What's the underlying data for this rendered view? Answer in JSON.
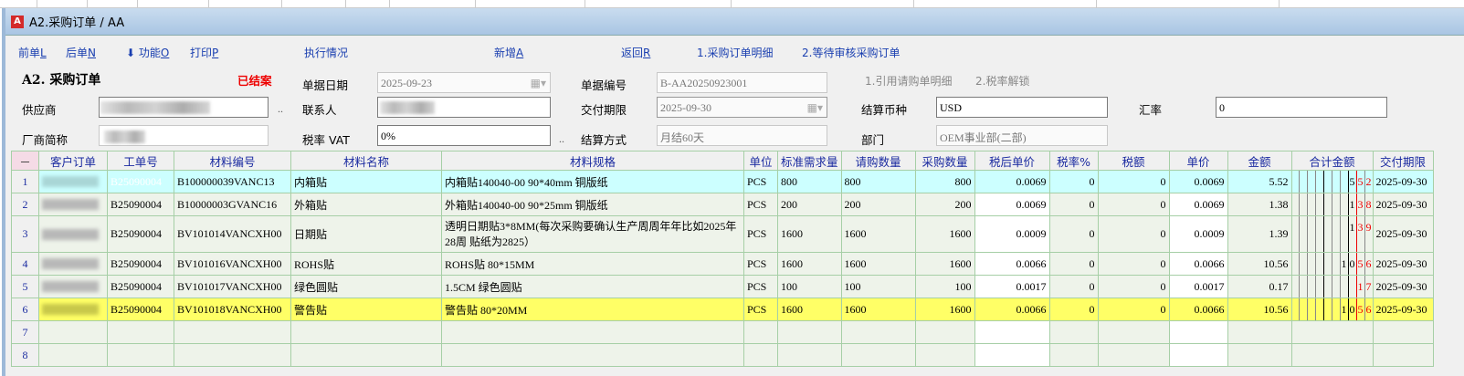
{
  "window": {
    "title": "A2.采购订单 / AA",
    "logo": "A"
  },
  "toolbar": [
    {
      "label": "前单",
      "key": "L"
    },
    {
      "label": "后单",
      "key": "N"
    },
    {
      "label": "功能",
      "key": "O",
      "icon": "arrow-down-icon"
    },
    {
      "label": "打印",
      "key": "P"
    },
    {
      "label": "执行情况",
      "key": ""
    },
    {
      "label": "新增",
      "key": "A"
    },
    {
      "label": "返回",
      "key": "R"
    },
    {
      "label": "1.采购订单明细",
      "key": ""
    },
    {
      "label": "2.等待审核采购订单",
      "key": ""
    }
  ],
  "form": {
    "heading": "A2. 采购订单",
    "status": "已结案",
    "date_label": "单据日期",
    "date": "2025-09-23",
    "docno_label": "单据编号",
    "docno": "B-AA20250923001",
    "ref_link": "1.引用请购单明细",
    "unlock_link": "2.税率解锁",
    "supplier_label": "供应商",
    "contact_label": "联系人",
    "delivery_label": "交付期限",
    "delivery": "2025-09-30",
    "currency_label": "结算币种",
    "currency": "USD",
    "rate_label": "汇率",
    "rate": "0",
    "short_label": "厂商简称",
    "vat_label": "税率 VAT",
    "vat": "0%",
    "payment_label": "结算方式",
    "payment": "月结60天",
    "dept_label": "部门",
    "dept": "OEM事业部(二部)",
    "ellipsis": ".."
  },
  "table": {
    "corner": "－",
    "columns": [
      "客户订单",
      "工单号",
      "材料编号",
      "材料名称",
      "材料规格",
      "单位",
      "标准需求量",
      "请购数量",
      "采购数量",
      "税后单价",
      "税率%",
      "税额",
      "单价",
      "金额",
      "合计金额",
      "交付期限"
    ],
    "rows": [
      {
        "n": "1",
        "wo": "B25090004",
        "code": "B100000039VANC13",
        "name": "内箱贴",
        "spec": "内箱贴140040-00 90*40mm 铜版纸",
        "unit": "PCS",
        "std": "800",
        "req": "800",
        "qty": "800",
        "tprice": "0.0069",
        "tax": "0",
        "taxamt": "0",
        "price": "0.0069",
        "amt": "5.52",
        "total": [
          "5",
          "5",
          "2"
        ],
        "due": "2025-09-30"
      },
      {
        "n": "2",
        "wo": "B25090004",
        "code": "B10000003GVANC16",
        "name": "外箱贴",
        "spec": "外箱贴140040-00 90*25mm 铜版纸",
        "unit": "PCS",
        "std": "200",
        "req": "200",
        "qty": "200",
        "tprice": "0.0069",
        "tax": "0",
        "taxamt": "0",
        "price": "0.0069",
        "amt": "1.38",
        "total": [
          "1",
          "3",
          "8"
        ],
        "due": "2025-09-30"
      },
      {
        "n": "3",
        "wo": "B25090004",
        "code": "BV101014VANCXH00",
        "name": "日期贴",
        "spec": "透明日期贴3*8MM(每次采购要确认生产周周年年比如2025年28周 贴纸为2825）",
        "unit": "PCS",
        "std": "1600",
        "req": "1600",
        "qty": "1600",
        "tprice": "0.0009",
        "tax": "0",
        "taxamt": "0",
        "price": "0.0009",
        "amt": "1.39",
        "total": [
          "1",
          "3",
          "9"
        ],
        "due": "2025-09-30"
      },
      {
        "n": "4",
        "wo": "B25090004",
        "code": "BV101016VANCXH00",
        "name": "ROHS贴",
        "spec": "ROHS贴 80*15MM",
        "unit": "PCS",
        "std": "1600",
        "req": "1600",
        "qty": "1600",
        "tprice": "0.0066",
        "tax": "0",
        "taxamt": "0",
        "price": "0.0066",
        "amt": "10.56",
        "total": [
          "1",
          "0",
          "5",
          "6"
        ],
        "due": "2025-09-30"
      },
      {
        "n": "5",
        "wo": "B25090004",
        "code": "BV101017VANCXH00",
        "name": "绿色圆贴",
        "spec": "1.5CM 绿色圆贴",
        "unit": "PCS",
        "std": "100",
        "req": "100",
        "qty": "100",
        "tprice": "0.0017",
        "tax": "0",
        "taxamt": "0",
        "price": "0.0017",
        "amt": "0.17",
        "total": [
          "1",
          "7"
        ],
        "due": "2025-09-30"
      },
      {
        "n": "6",
        "wo": "B25090004",
        "code": "BV101018VANCXH00",
        "name": "警告贴",
        "spec": "警告贴 80*20MM",
        "unit": "PCS",
        "std": "1600",
        "req": "1600",
        "qty": "1600",
        "tprice": "0.0066",
        "tax": "0",
        "taxamt": "0",
        "price": "0.0066",
        "amt": "10.56",
        "total": [
          "1",
          "0",
          "5",
          "6"
        ],
        "due": "2025-09-30"
      }
    ],
    "empty_rows": [
      "7",
      "8"
    ]
  },
  "colors": {
    "selected_row": "#ccffff",
    "highlight_row": "#ffff66",
    "current_cell": "#5562ea",
    "status": "#e00000",
    "link": "#1a3fb0"
  }
}
